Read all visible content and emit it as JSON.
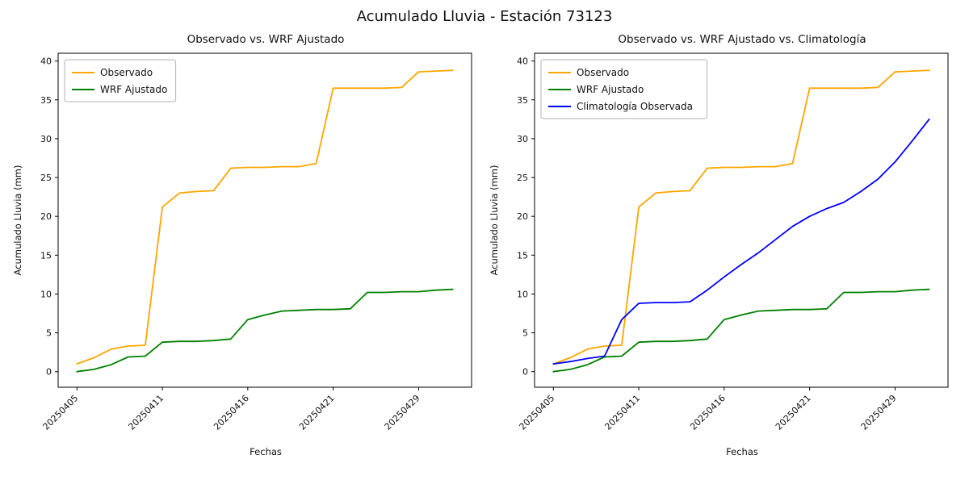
{
  "figure": {
    "title": "Acumulado Lluvia - Estación 73123",
    "background": "#ffffff"
  },
  "colors": {
    "observado": "#FFA500",
    "wrf_ajustado": "#008000",
    "climatologia": "#0000FF",
    "axes": "#000000"
  },
  "chart_data": [
    {
      "type": "line",
      "title": "Observado vs. WRF Ajustado",
      "xlabel": "Fechas",
      "ylabel": "Acumulado Lluvia (mm)",
      "grid": false,
      "legend_position": "upper left",
      "xlim": [
        -1.1,
        23.1
      ],
      "ylim": [
        -2,
        41
      ],
      "y_ticks": [
        0,
        5,
        10,
        15,
        20,
        25,
        30,
        35,
        40
      ],
      "x_tick_positions": [
        0,
        5,
        10,
        15,
        20
      ],
      "x_tick_labels": [
        "20250405",
        "20250411",
        "20250416",
        "20250421",
        "20250429"
      ],
      "series": [
        {
          "name": "Observado",
          "color": "#FFA500",
          "values": [
            1.0,
            1.8,
            2.9,
            3.3,
            3.4,
            21.2,
            23.0,
            23.2,
            23.3,
            26.2,
            26.3,
            26.3,
            26.4,
            26.4,
            26.8,
            36.5,
            36.5,
            36.5,
            36.5,
            36.6,
            38.6,
            38.7,
            38.8
          ]
        },
        {
          "name": "WRF Ajustado",
          "color": "#008000",
          "values": [
            0.0,
            0.3,
            0.9,
            1.9,
            2.0,
            3.8,
            3.9,
            3.9,
            4.0,
            4.2,
            6.7,
            7.3,
            7.8,
            7.9,
            8.0,
            8.0,
            8.1,
            10.2,
            10.2,
            10.3,
            10.3,
            10.5,
            10.6
          ]
        }
      ]
    },
    {
      "type": "line",
      "title": "Observado vs. WRF Ajustado vs. Climatología",
      "xlabel": "Fechas",
      "ylabel": "Acumulado Lluvia (mm)",
      "grid": false,
      "legend_position": "upper left",
      "xlim": [
        -1.1,
        23.1
      ],
      "ylim": [
        -2,
        41
      ],
      "y_ticks": [
        0,
        5,
        10,
        15,
        20,
        25,
        30,
        35,
        40
      ],
      "x_tick_positions": [
        0,
        5,
        10,
        15,
        20
      ],
      "x_tick_labels": [
        "20250405",
        "20250411",
        "20250416",
        "20250421",
        "20250429"
      ],
      "series": [
        {
          "name": "Observado",
          "color": "#FFA500",
          "values": [
            1.0,
            1.8,
            2.9,
            3.3,
            3.4,
            21.2,
            23.0,
            23.2,
            23.3,
            26.2,
            26.3,
            26.3,
            26.4,
            26.4,
            26.8,
            36.5,
            36.5,
            36.5,
            36.5,
            36.6,
            38.6,
            38.7,
            38.8
          ]
        },
        {
          "name": "WRF Ajustado",
          "color": "#008000",
          "values": [
            0.0,
            0.3,
            0.9,
            1.9,
            2.0,
            3.8,
            3.9,
            3.9,
            4.0,
            4.2,
            6.7,
            7.3,
            7.8,
            7.9,
            8.0,
            8.0,
            8.1,
            10.2,
            10.2,
            10.3,
            10.3,
            10.5,
            10.6
          ]
        },
        {
          "name": "Climatología Observada",
          "color": "#0000FF",
          "values": [
            1.0,
            1.3,
            1.7,
            2.0,
            6.7,
            8.8,
            8.9,
            8.9,
            9.0,
            10.5,
            12.2,
            13.8,
            15.3,
            17.0,
            18.7,
            20.0,
            21.0,
            21.8,
            23.2,
            24.8,
            27.0,
            29.7,
            32.5
          ]
        }
      ]
    }
  ]
}
